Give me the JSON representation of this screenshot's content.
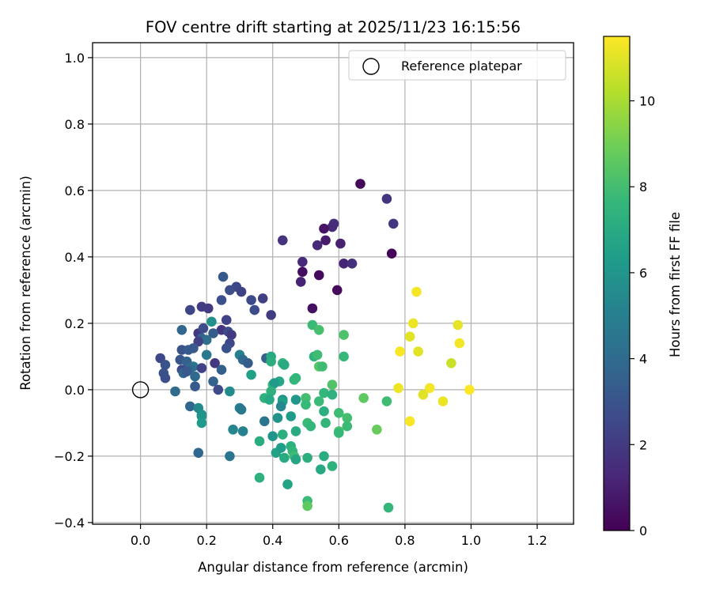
{
  "chart_data": {
    "type": "scatter",
    "title": "FOV centre drift starting at 2025/11/23 16:15:56",
    "xlabel": "Angular distance from reference (arcmin)",
    "ylabel": "Rotation from reference (arcmin)",
    "xlim": [
      -0.145,
      1.31
    ],
    "ylim": [
      -0.405,
      1.045
    ],
    "x_ticks": [
      0.0,
      0.2,
      0.4,
      0.6,
      0.8,
      1.0,
      1.2
    ],
    "x_tick_labels": [
      "0.0",
      "0.2",
      "0.4",
      "0.6",
      "0.8",
      "1.0",
      "1.2"
    ],
    "y_ticks": [
      -0.4,
      -0.2,
      0.0,
      0.2,
      0.4,
      0.6,
      0.8,
      1.0
    ],
    "y_tick_labels": [
      "−0.4",
      "−0.2",
      "0.0",
      "0.2",
      "0.4",
      "0.6",
      "0.8",
      "1.0"
    ],
    "grid": true,
    "legend": {
      "placement": "top-right",
      "entries": [
        {
          "label": "Reference platepar",
          "marker": "open-circle"
        }
      ]
    },
    "reference_point": {
      "x": 0.0,
      "y": 0.0
    },
    "colorbar": {
      "label": "Hours from first FF file",
      "colormap": "viridis",
      "range": [
        0,
        11.5
      ],
      "ticks": [
        0,
        2,
        4,
        6,
        8,
        10
      ],
      "tick_labels": [
        "0",
        "2",
        "4",
        "6",
        "8",
        "10"
      ],
      "colors": [
        "#440154",
        "#482878",
        "#3e4989",
        "#31688e",
        "#26828e",
        "#1f9e89",
        "#35b779",
        "#6ece58",
        "#b5de2b",
        "#fde725"
      ]
    },
    "series": [
      {
        "points": [
          {
            "x": 0.665,
            "y": 0.62,
            "c": 0.2
          },
          {
            "x": 0.745,
            "y": 0.575,
            "c": 1.8
          },
          {
            "x": 0.765,
            "y": 0.5,
            "c": 1.9
          },
          {
            "x": 0.585,
            "y": 0.5,
            "c": 1.5
          },
          {
            "x": 0.58,
            "y": 0.49,
            "c": 1.4
          },
          {
            "x": 0.555,
            "y": 0.485,
            "c": 0.6
          },
          {
            "x": 0.43,
            "y": 0.45,
            "c": 1.7
          },
          {
            "x": 0.56,
            "y": 0.45,
            "c": 0.9
          },
          {
            "x": 0.535,
            "y": 0.435,
            "c": 1.3
          },
          {
            "x": 0.605,
            "y": 0.44,
            "c": 1.0
          },
          {
            "x": 0.76,
            "y": 0.41,
            "c": 0.1
          },
          {
            "x": 0.615,
            "y": 0.38,
            "c": 1.2
          },
          {
            "x": 0.64,
            "y": 0.38,
            "c": 1.6
          },
          {
            "x": 0.49,
            "y": 0.385,
            "c": 1.4
          },
          {
            "x": 0.49,
            "y": 0.355,
            "c": 0.4
          },
          {
            "x": 0.54,
            "y": 0.345,
            "c": 0.3
          },
          {
            "x": 0.485,
            "y": 0.325,
            "c": 1.1
          },
          {
            "x": 0.595,
            "y": 0.3,
            "c": 0.3
          },
          {
            "x": 0.52,
            "y": 0.245,
            "c": 0.5
          },
          {
            "x": 0.25,
            "y": 0.34,
            "c": 3.2
          },
          {
            "x": 0.29,
            "y": 0.31,
            "c": 2.5
          },
          {
            "x": 0.27,
            "y": 0.3,
            "c": 2.8
          },
          {
            "x": 0.305,
            "y": 0.295,
            "c": 2.3
          },
          {
            "x": 0.245,
            "y": 0.27,
            "c": 2.9
          },
          {
            "x": 0.335,
            "y": 0.27,
            "c": 2.6
          },
          {
            "x": 0.37,
            "y": 0.275,
            "c": 2.2
          },
          {
            "x": 0.185,
            "y": 0.25,
            "c": 2.1
          },
          {
            "x": 0.205,
            "y": 0.245,
            "c": 2.0
          },
          {
            "x": 0.15,
            "y": 0.24,
            "c": 2.4
          },
          {
            "x": 0.345,
            "y": 0.24,
            "c": 2.7
          },
          {
            "x": 0.395,
            "y": 0.225,
            "c": 2.1
          },
          {
            "x": 0.26,
            "y": 0.21,
            "c": 2.3
          },
          {
            "x": 0.125,
            "y": 0.18,
            "c": 3.8
          },
          {
            "x": 0.175,
            "y": 0.17,
            "c": 1.9
          },
          {
            "x": 0.19,
            "y": 0.185,
            "c": 2.7
          },
          {
            "x": 0.245,
            "y": 0.18,
            "c": 1.8
          },
          {
            "x": 0.265,
            "y": 0.175,
            "c": 2.6
          },
          {
            "x": 0.215,
            "y": 0.205,
            "c": 5.8
          },
          {
            "x": 0.22,
            "y": 0.17,
            "c": 3.4
          },
          {
            "x": 0.275,
            "y": 0.165,
            "c": 2.0
          },
          {
            "x": 0.185,
            "y": 0.155,
            "c": 3.5
          },
          {
            "x": 0.2,
            "y": 0.15,
            "c": 4.2
          },
          {
            "x": 0.175,
            "y": 0.145,
            "c": 2.2
          },
          {
            "x": 0.27,
            "y": 0.14,
            "c": 2.5
          },
          {
            "x": 0.26,
            "y": 0.125,
            "c": 2.9
          },
          {
            "x": 0.125,
            "y": 0.12,
            "c": 3.0
          },
          {
            "x": 0.145,
            "y": 0.12,
            "c": 3.3
          },
          {
            "x": 0.16,
            "y": 0.125,
            "c": 3.2
          },
          {
            "x": 0.2,
            "y": 0.105,
            "c": 4.6
          },
          {
            "x": 0.3,
            "y": 0.105,
            "c": 5.0
          },
          {
            "x": 0.31,
            "y": 0.09,
            "c": 3.9
          },
          {
            "x": 0.06,
            "y": 0.095,
            "c": 2.5
          },
          {
            "x": 0.12,
            "y": 0.09,
            "c": 3.1
          },
          {
            "x": 0.14,
            "y": 0.085,
            "c": 3.6
          },
          {
            "x": 0.075,
            "y": 0.075,
            "c": 3.0
          },
          {
            "x": 0.16,
            "y": 0.07,
            "c": 4.5
          },
          {
            "x": 0.225,
            "y": 0.08,
            "c": 1.9
          },
          {
            "x": 0.325,
            "y": 0.08,
            "c": 3.4
          },
          {
            "x": 0.15,
            "y": 0.065,
            "c": 4.0
          },
          {
            "x": 0.125,
            "y": 0.06,
            "c": 2.6
          },
          {
            "x": 0.185,
            "y": 0.065,
            "c": 2.3
          },
          {
            "x": 0.245,
            "y": 0.06,
            "c": 3.5
          },
          {
            "x": 0.07,
            "y": 0.05,
            "c": 2.9
          },
          {
            "x": 0.13,
            "y": 0.05,
            "c": 3.7
          },
          {
            "x": 0.14,
            "y": 0.055,
            "c": 3.2
          },
          {
            "x": 0.075,
            "y": 0.035,
            "c": 2.8
          },
          {
            "x": 0.165,
            "y": 0.04,
            "c": 3.9
          },
          {
            "x": 0.22,
            "y": 0.025,
            "c": 3.6
          },
          {
            "x": 0.235,
            "y": 0.0,
            "c": 2.6
          },
          {
            "x": 0.165,
            "y": 0.01,
            "c": 3.3
          },
          {
            "x": 0.105,
            "y": -0.005,
            "c": 4.0
          },
          {
            "x": 0.27,
            "y": -0.005,
            "c": 5.5
          },
          {
            "x": 0.15,
            "y": -0.05,
            "c": 3.8
          },
          {
            "x": 0.175,
            "y": -0.055,
            "c": 5.4
          },
          {
            "x": 0.185,
            "y": -0.075,
            "c": 5.8
          },
          {
            "x": 0.185,
            "y": -0.08,
            "c": 6.0
          },
          {
            "x": 0.185,
            "y": -0.1,
            "c": 6.2
          },
          {
            "x": 0.175,
            "y": -0.19,
            "c": 3.8
          },
          {
            "x": 0.27,
            "y": -0.2,
            "c": 4.5
          },
          {
            "x": 0.3,
            "y": -0.055,
            "c": 5.0
          },
          {
            "x": 0.305,
            "y": -0.06,
            "c": 4.6
          },
          {
            "x": 0.28,
            "y": -0.12,
            "c": 5.3
          },
          {
            "x": 0.31,
            "y": -0.125,
            "c": 5.1
          },
          {
            "x": 0.375,
            "y": -0.095,
            "c": 4.5
          },
          {
            "x": 0.38,
            "y": 0.095,
            "c": 3.6
          },
          {
            "x": 0.335,
            "y": 0.045,
            "c": 6.5
          },
          {
            "x": 0.395,
            "y": 0.1,
            "c": 7.0
          },
          {
            "x": 0.395,
            "y": 0.085,
            "c": 7.2
          },
          {
            "x": 0.43,
            "y": 0.08,
            "c": 7.4
          },
          {
            "x": 0.435,
            "y": 0.075,
            "c": 7.0
          },
          {
            "x": 0.42,
            "y": 0.025,
            "c": 6.8
          },
          {
            "x": 0.465,
            "y": 0.03,
            "c": 7.5
          },
          {
            "x": 0.47,
            "y": 0.035,
            "c": 7.6
          },
          {
            "x": 0.4,
            "y": 0.015,
            "c": 7.8
          },
          {
            "x": 0.405,
            "y": 0.02,
            "c": 6.2
          },
          {
            "x": 0.395,
            "y": -0.005,
            "c": 7.3
          },
          {
            "x": 0.375,
            "y": -0.025,
            "c": 7.4
          },
          {
            "x": 0.39,
            "y": -0.03,
            "c": 6.9
          },
          {
            "x": 0.43,
            "y": -0.03,
            "c": 5.6
          },
          {
            "x": 0.43,
            "y": -0.035,
            "c": 6.5
          },
          {
            "x": 0.425,
            "y": -0.05,
            "c": 5.4
          },
          {
            "x": 0.47,
            "y": -0.03,
            "c": 6.1
          },
          {
            "x": 0.5,
            "y": -0.025,
            "c": 8.0
          },
          {
            "x": 0.5,
            "y": -0.045,
            "c": 7.7
          },
          {
            "x": 0.415,
            "y": -0.085,
            "c": 5.9
          },
          {
            "x": 0.455,
            "y": -0.08,
            "c": 6.3
          },
          {
            "x": 0.4,
            "y": -0.14,
            "c": 6.0
          },
          {
            "x": 0.43,
            "y": -0.135,
            "c": 7.2
          },
          {
            "x": 0.47,
            "y": -0.125,
            "c": 7.0
          },
          {
            "x": 0.505,
            "y": -0.1,
            "c": 7.8
          },
          {
            "x": 0.515,
            "y": -0.11,
            "c": 7.6
          },
          {
            "x": 0.36,
            "y": -0.155,
            "c": 7.1
          },
          {
            "x": 0.41,
            "y": -0.19,
            "c": 6.6
          },
          {
            "x": 0.425,
            "y": -0.175,
            "c": 6.4
          },
          {
            "x": 0.455,
            "y": -0.17,
            "c": 7.3
          },
          {
            "x": 0.46,
            "y": -0.185,
            "c": 7.5
          },
          {
            "x": 0.465,
            "y": -0.2,
            "c": 7.9
          },
          {
            "x": 0.435,
            "y": -0.205,
            "c": 7.0
          },
          {
            "x": 0.47,
            "y": -0.21,
            "c": 6.8
          },
          {
            "x": 0.505,
            "y": -0.205,
            "c": 7.2
          },
          {
            "x": 0.555,
            "y": -0.2,
            "c": 7.1
          },
          {
            "x": 0.545,
            "y": -0.24,
            "c": 6.9
          },
          {
            "x": 0.58,
            "y": -0.23,
            "c": 7.4
          },
          {
            "x": 0.36,
            "y": -0.265,
            "c": 7.3
          },
          {
            "x": 0.445,
            "y": -0.285,
            "c": 6.7
          },
          {
            "x": 0.505,
            "y": -0.335,
            "c": 7.8
          },
          {
            "x": 0.505,
            "y": -0.35,
            "c": 8.6
          },
          {
            "x": 0.52,
            "y": 0.195,
            "c": 7.8
          },
          {
            "x": 0.54,
            "y": 0.18,
            "c": 8.1
          },
          {
            "x": 0.615,
            "y": 0.165,
            "c": 8.2
          },
          {
            "x": 0.525,
            "y": 0.1,
            "c": 7.4
          },
          {
            "x": 0.535,
            "y": 0.105,
            "c": 7.9
          },
          {
            "x": 0.615,
            "y": 0.1,
            "c": 7.7
          },
          {
            "x": 0.54,
            "y": 0.07,
            "c": 8.4
          },
          {
            "x": 0.55,
            "y": 0.07,
            "c": 7.9
          },
          {
            "x": 0.58,
            "y": 0.015,
            "c": 8.3
          },
          {
            "x": 0.555,
            "y": -0.01,
            "c": 7.6
          },
          {
            "x": 0.58,
            "y": -0.015,
            "c": 7.3
          },
          {
            "x": 0.54,
            "y": -0.035,
            "c": 7.8
          },
          {
            "x": 0.555,
            "y": -0.065,
            "c": 7.2
          },
          {
            "x": 0.6,
            "y": -0.07,
            "c": 7.9
          },
          {
            "x": 0.56,
            "y": -0.1,
            "c": 7.5
          },
          {
            "x": 0.625,
            "y": -0.085,
            "c": 8.0
          },
          {
            "x": 0.6,
            "y": -0.125,
            "c": 8.3
          },
          {
            "x": 0.6,
            "y": -0.13,
            "c": 7.7
          },
          {
            "x": 0.625,
            "y": -0.11,
            "c": 7.8
          },
          {
            "x": 0.675,
            "y": -0.025,
            "c": 8.6
          },
          {
            "x": 0.715,
            "y": -0.12,
            "c": 8.8
          },
          {
            "x": 0.745,
            "y": -0.035,
            "c": 7.9
          },
          {
            "x": 0.75,
            "y": -0.355,
            "c": 7.6
          },
          {
            "x": 0.835,
            "y": 0.295,
            "c": 11.3
          },
          {
            "x": 0.825,
            "y": 0.2,
            "c": 11.2
          },
          {
            "x": 0.815,
            "y": 0.16,
            "c": 11.0
          },
          {
            "x": 0.96,
            "y": 0.195,
            "c": 11.1
          },
          {
            "x": 0.965,
            "y": 0.14,
            "c": 11.3
          },
          {
            "x": 0.84,
            "y": 0.115,
            "c": 11.0
          },
          {
            "x": 0.785,
            "y": 0.115,
            "c": 11.4
          },
          {
            "x": 0.94,
            "y": 0.08,
            "c": 10.6
          },
          {
            "x": 0.78,
            "y": 0.005,
            "c": 11.2
          },
          {
            "x": 0.875,
            "y": 0.005,
            "c": 11.3
          },
          {
            "x": 0.855,
            "y": -0.015,
            "c": 11.0
          },
          {
            "x": 0.915,
            "y": -0.035,
            "c": 11.2
          },
          {
            "x": 0.815,
            "y": -0.095,
            "c": 11.4
          },
          {
            "x": 0.995,
            "y": 0.0,
            "c": 11.5
          }
        ]
      }
    ]
  }
}
